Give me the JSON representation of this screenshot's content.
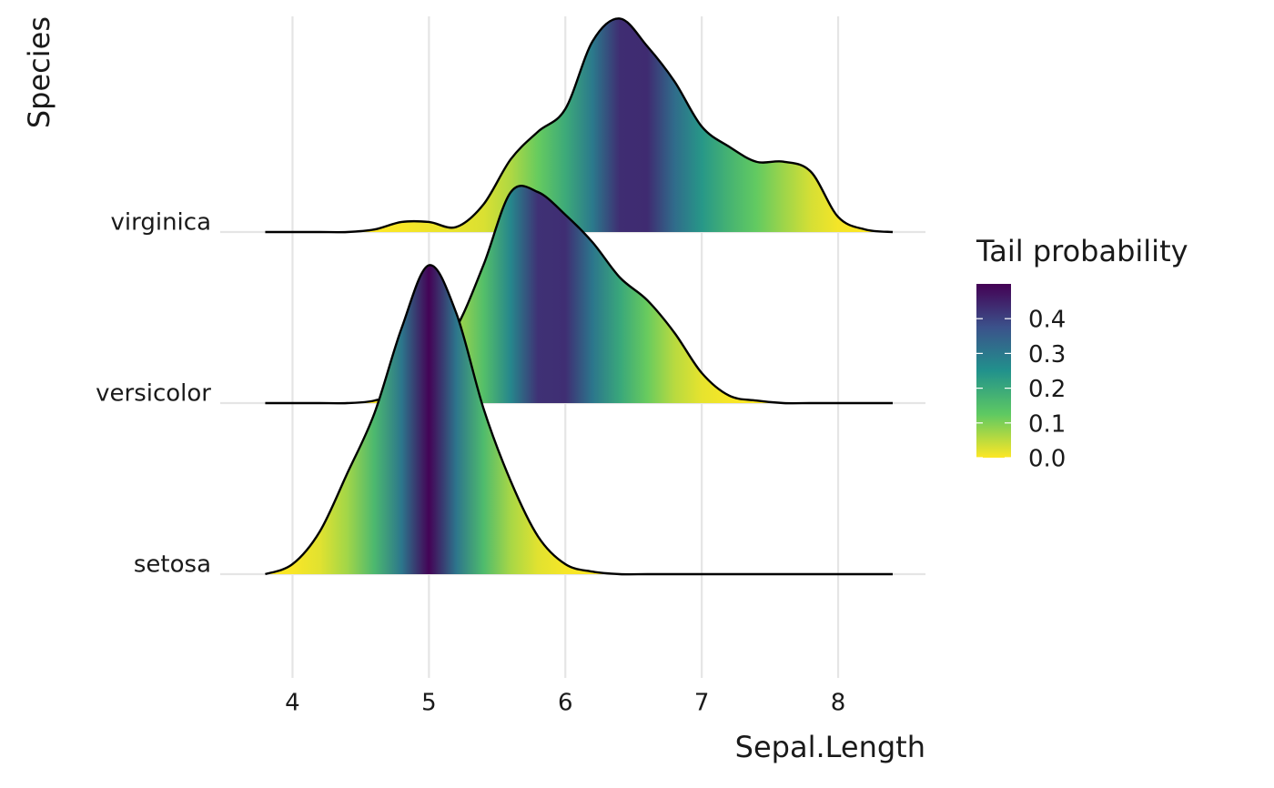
{
  "chart_data": {
    "type": "ridgeline",
    "x_label": "Sepal.Length",
    "y_label": "Species",
    "x": [
      3.8,
      4.0,
      4.2,
      4.4,
      4.6,
      4.8,
      5.0,
      5.2,
      5.4,
      5.6,
      5.8,
      6.0,
      6.2,
      6.4,
      6.6,
      6.8,
      7.0,
      7.2,
      7.4,
      7.6,
      7.8,
      8.0,
      8.2,
      8.4
    ],
    "series": [
      {
        "name": "setosa",
        "values": [
          0,
          0.04,
          0.17,
          0.4,
          0.64,
          0.98,
          1.23,
          1.04,
          0.66,
          0.37,
          0.15,
          0.04,
          0.01,
          0,
          0,
          0,
          0,
          0,
          0,
          0,
          0,
          0,
          0,
          0
        ]
      },
      {
        "name": "versicolor",
        "values": [
          0,
          0,
          0,
          0,
          0.01,
          0.05,
          0.17,
          0.3,
          0.55,
          0.84,
          0.84,
          0.75,
          0.64,
          0.5,
          0.41,
          0.28,
          0.12,
          0.03,
          0.01,
          0,
          0,
          0,
          0,
          0
        ]
      },
      {
        "name": "virginica",
        "values": [
          0,
          0,
          0,
          0,
          0.01,
          0.04,
          0.04,
          0.02,
          0.11,
          0.29,
          0.4,
          0.49,
          0.76,
          0.85,
          0.74,
          0.6,
          0.42,
          0.34,
          0.28,
          0.28,
          0.24,
          0.06,
          0.01,
          0
        ]
      }
    ],
    "xlim": [
      3.47,
      8.64
    ],
    "xticks": [
      4,
      5,
      6,
      7,
      8
    ],
    "grid": true,
    "legend": {
      "title": "Tail probability",
      "limits": [
        0,
        0.5
      ],
      "ticks": [
        {
          "value": 0,
          "label": "0.0"
        },
        {
          "value": 0.1,
          "label": "0.1"
        },
        {
          "value": 0.2,
          "label": "0.2"
        },
        {
          "value": 0.3,
          "label": "0.3"
        },
        {
          "value": 0.4,
          "label": "0.4"
        }
      ],
      "colors": [
        "#fde725",
        "#5ec962",
        "#21918c",
        "#3b528b",
        "#440154"
      ]
    }
  }
}
